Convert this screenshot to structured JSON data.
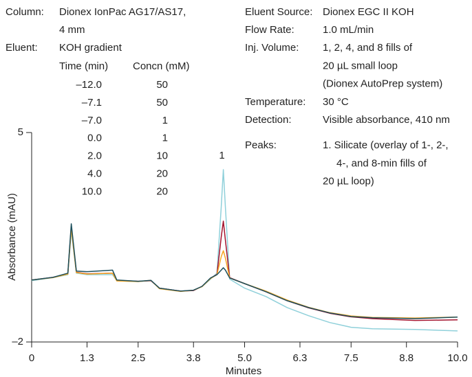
{
  "chart_data": {
    "type": "line",
    "x_label": "Minutes",
    "y_label": "Absorbance (mAU)",
    "xlim": [
      0,
      10
    ],
    "ylim": [
      -2,
      5
    ],
    "xticks": [
      0,
      1.3,
      2.5,
      3.8,
      {
        "value": 5,
        "label": "5.0"
      },
      6.3,
      7.5,
      8.8,
      {
        "value": 10,
        "label": "10.0"
      }
    ],
    "yticks": [
      {
        "value": -2,
        "label": "–2"
      },
      5
    ],
    "peak_label": "1",
    "x": [
      0,
      0.5,
      0.85,
      0.93,
      1.05,
      1.3,
      1.9,
      2.0,
      2.5,
      2.8,
      3.0,
      3.5,
      3.8,
      4.0,
      4.2,
      4.35,
      4.45,
      4.5,
      4.55,
      4.65,
      5.0,
      5.5,
      6.0,
      6.5,
      7.0,
      7.5,
      8.0,
      9.0,
      10.0
    ],
    "series": [
      {
        "color": "#8fd0da",
        "values": [
          0.05,
          0.15,
          0.25,
          1.7,
          0.3,
          0.25,
          0.25,
          0.05,
          0.02,
          0.05,
          -0.2,
          -0.3,
          -0.27,
          -0.15,
          0.1,
          0.3,
          2.5,
          3.76,
          2.5,
          0.1,
          -0.2,
          -0.48,
          -0.85,
          -1.12,
          -1.35,
          -1.51,
          -1.56,
          -1.58,
          -1.63
        ]
      },
      {
        "color": "#a3122d",
        "values": [
          0.07,
          0.16,
          0.28,
          1.85,
          0.33,
          0.28,
          0.3,
          0.06,
          0.03,
          0.05,
          -0.2,
          -0.3,
          -0.28,
          -0.14,
          0.13,
          0.26,
          1.5,
          2.04,
          1.4,
          0.15,
          -0.05,
          -0.32,
          -0.62,
          -0.86,
          -1.04,
          -1.16,
          -1.22,
          -1.28,
          -1.26
        ]
      },
      {
        "color": "#f5a623",
        "values": [
          0.07,
          0.15,
          0.27,
          1.8,
          0.32,
          0.27,
          0.3,
          0.04,
          0.02,
          0.06,
          -0.22,
          -0.31,
          -0.27,
          -0.15,
          0.12,
          0.25,
          0.85,
          1.05,
          0.8,
          0.14,
          -0.05,
          -0.3,
          -0.6,
          -0.84,
          -1.02,
          -1.13,
          -1.18,
          -1.2,
          -1.17
        ]
      },
      {
        "color": "#1c4f5c",
        "values": [
          0.07,
          0.16,
          0.3,
          1.95,
          0.37,
          0.35,
          0.4,
          0.07,
          0.03,
          0.06,
          -0.2,
          -0.3,
          -0.27,
          -0.14,
          0.14,
          0.25,
          0.4,
          0.48,
          0.4,
          0.14,
          -0.05,
          -0.32,
          -0.62,
          -0.85,
          -1.03,
          -1.15,
          -1.19,
          -1.22,
          -1.17
        ]
      }
    ],
    "annotations": {
      "column_label": "Column:",
      "column": [
        "Dionex IonPac AG17/AS17,",
        "4 mm"
      ],
      "eluent_label": "Eluent:",
      "eluent": "KOH gradient",
      "gradient_header": [
        "Time (min)",
        "Concn (mM)"
      ],
      "gradient": [
        [
          "–12.0",
          "50"
        ],
        [
          "–7.1",
          "50"
        ],
        [
          "–7.0",
          "1"
        ],
        [
          "0.0",
          "1"
        ],
        [
          "2.0",
          "10"
        ],
        [
          "4.0",
          "20"
        ],
        [
          "10.0",
          "20"
        ]
      ],
      "conditions": [
        {
          "label": "Eluent Source:",
          "text": [
            "Dionex EGC II KOH"
          ]
        },
        {
          "label": "Flow Rate:",
          "text": [
            "1.0 mL/min"
          ]
        },
        {
          "label": "Inj. Volume:",
          "text": [
            "1, 2, 4, and 8 fills of",
            "20 µL small loop",
            "(Dionex AutoPrep system)"
          ]
        },
        {
          "label": "Temperature:",
          "text": [
            "30 °C"
          ]
        },
        {
          "label": "Detection:",
          "text": [
            "Visible absorbance, 410 nm"
          ]
        },
        {
          "label": "Peaks:",
          "text": [
            "1. Silicate (overlay of 1-, 2-,",
            "4-, and 8-min fills of",
            "20 µL loop)"
          ]
        }
      ]
    }
  }
}
